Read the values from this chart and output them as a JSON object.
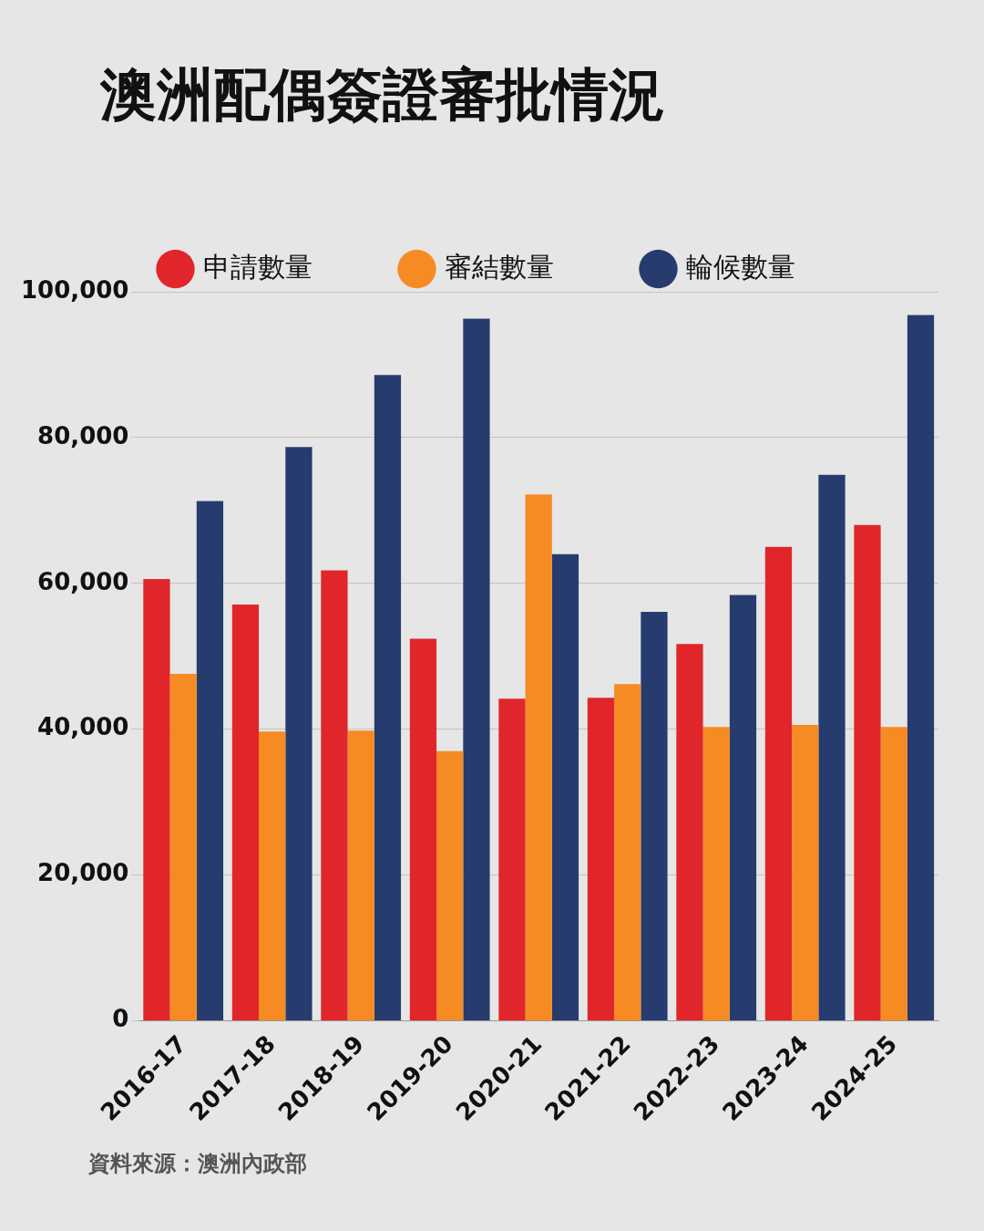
{
  "chart_data": {
    "type": "bar",
    "title": "澳洲配偶簽證審批情況",
    "categories": [
      "2016-17",
      "2017-18",
      "2018-19",
      "2019-20",
      "2020-21",
      "2021-22",
      "2022-23",
      "2023-24",
      "2024-25"
    ],
    "series": [
      {
        "name": "申請數量",
        "color": "#e0262a",
        "values": [
          60600,
          57100,
          61800,
          52400,
          44200,
          44300,
          51700,
          65000,
          68000
        ]
      },
      {
        "name": "審結數量",
        "color": "#f68b23",
        "values": [
          47600,
          39700,
          39800,
          37000,
          72200,
          46200,
          40300,
          40600,
          40300
        ]
      },
      {
        "name": "輪候數量",
        "color": "#263c6e",
        "values": [
          71300,
          78700,
          88600,
          96300,
          64000,
          56100,
          58400,
          74900,
          96800
        ]
      }
    ],
    "ylim": [
      0,
      100000
    ],
    "yticks": [
      {
        "value": 0,
        "label": "0"
      },
      {
        "value": 20000,
        "label": "20,000"
      },
      {
        "value": 40000,
        "label": "40,000"
      },
      {
        "value": 60000,
        "label": "60,000"
      },
      {
        "value": 80000,
        "label": "80,000"
      },
      {
        "value": 100000,
        "label": "100,000"
      }
    ],
    "grid": "y",
    "legend": "top",
    "annotations": [
      "資料來源：澳洲內政部"
    ]
  }
}
